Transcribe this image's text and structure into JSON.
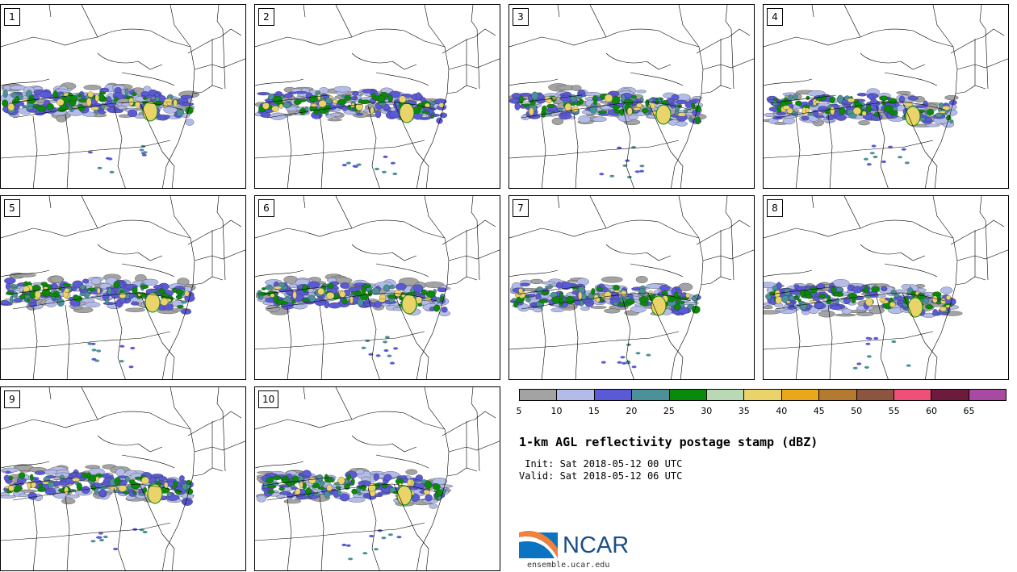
{
  "panels": [
    {
      "label": "1"
    },
    {
      "label": "2"
    },
    {
      "label": "3"
    },
    {
      "label": "4"
    },
    {
      "label": "5"
    },
    {
      "label": "6"
    },
    {
      "label": "7"
    },
    {
      "label": "8"
    },
    {
      "label": "9"
    },
    {
      "label": "10"
    }
  ],
  "legend": {
    "ticks": [
      "5",
      "10",
      "15",
      "20",
      "25",
      "30",
      "35",
      "40",
      "45",
      "50",
      "55",
      "60",
      "65"
    ],
    "colors": [
      "#a3a3a3",
      "#b3bce8",
      "#5a5ad6",
      "#4c9199",
      "#0a8a0a",
      "#b9d8b4",
      "#ead46a",
      "#eaa71c",
      "#b37a30",
      "#8c5540",
      "#ef5079",
      "#6e1a3c",
      "#a94aa2"
    ]
  },
  "title": "1-km AGL reflectivity postage stamp (dBZ)",
  "init_label": " Init: Sat 2018-05-12 00 UTC",
  "valid_label": "Valid: Sat 2018-05-12 06 UTC",
  "logo_text": "NCAR",
  "site": "ensemble.ucar.edu"
}
